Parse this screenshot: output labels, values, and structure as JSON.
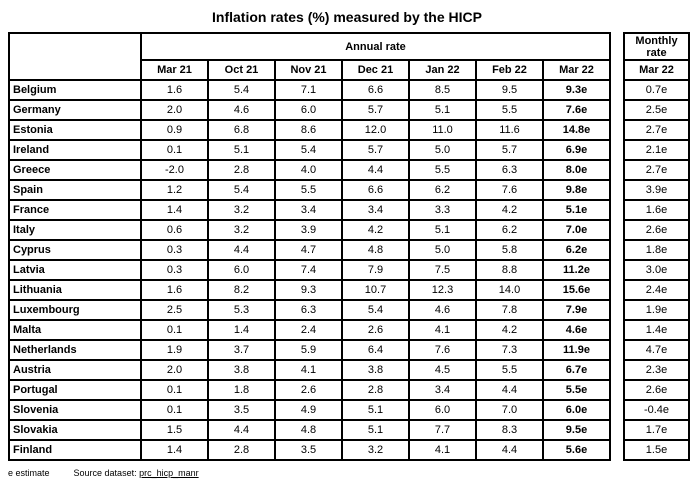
{
  "title": "Inflation rates (%) measured by the HICP",
  "annual_table": {
    "group_header": "Annual rate",
    "months": [
      "Mar 21",
      "Oct 21",
      "Nov 21",
      "Dec 21",
      "Jan 22",
      "Feb 22",
      "Mar 22"
    ],
    "rows": [
      {
        "country": "Belgium",
        "values": [
          "1.6",
          "5.4",
          "7.1",
          "6.6",
          "8.5",
          "9.5",
          "9.3e"
        ],
        "monthly": "0.7e"
      },
      {
        "country": "Germany",
        "values": [
          "2.0",
          "4.6",
          "6.0",
          "5.7",
          "5.1",
          "5.5",
          "7.6e"
        ],
        "monthly": "2.5e"
      },
      {
        "country": "Estonia",
        "values": [
          "0.9",
          "6.8",
          "8.6",
          "12.0",
          "11.0",
          "11.6",
          "14.8e"
        ],
        "monthly": "2.7e"
      },
      {
        "country": "Ireland",
        "values": [
          "0.1",
          "5.1",
          "5.4",
          "5.7",
          "5.0",
          "5.7",
          "6.9e"
        ],
        "monthly": "2.1e"
      },
      {
        "country": "Greece",
        "values": [
          "-2.0",
          "2.8",
          "4.0",
          "4.4",
          "5.5",
          "6.3",
          "8.0e"
        ],
        "monthly": "2.7e"
      },
      {
        "country": "Spain",
        "values": [
          "1.2",
          "5.4",
          "5.5",
          "6.6",
          "6.2",
          "7.6",
          "9.8e"
        ],
        "monthly": "3.9e"
      },
      {
        "country": "France",
        "values": [
          "1.4",
          "3.2",
          "3.4",
          "3.4",
          "3.3",
          "4.2",
          "5.1e"
        ],
        "monthly": "1.6e"
      },
      {
        "country": "Italy",
        "values": [
          "0.6",
          "3.2",
          "3.9",
          "4.2",
          "5.1",
          "6.2",
          "7.0e"
        ],
        "monthly": "2.6e"
      },
      {
        "country": "Cyprus",
        "values": [
          "0.3",
          "4.4",
          "4.7",
          "4.8",
          "5.0",
          "5.8",
          "6.2e"
        ],
        "monthly": "1.8e"
      },
      {
        "country": "Latvia",
        "values": [
          "0.3",
          "6.0",
          "7.4",
          "7.9",
          "7.5",
          "8.8",
          "11.2e"
        ],
        "monthly": "3.0e"
      },
      {
        "country": "Lithuania",
        "values": [
          "1.6",
          "8.2",
          "9.3",
          "10.7",
          "12.3",
          "14.0",
          "15.6e"
        ],
        "monthly": "2.4e"
      },
      {
        "country": "Luxembourg",
        "values": [
          "2.5",
          "5.3",
          "6.3",
          "5.4",
          "4.6",
          "7.8",
          "7.9e"
        ],
        "monthly": "1.9e"
      },
      {
        "country": "Malta",
        "values": [
          "0.1",
          "1.4",
          "2.4",
          "2.6",
          "4.1",
          "4.2",
          "4.6e"
        ],
        "monthly": "1.4e"
      },
      {
        "country": "Netherlands",
        "values": [
          "1.9",
          "3.7",
          "5.9",
          "6.4",
          "7.6",
          "7.3",
          "11.9e"
        ],
        "monthly": "4.7e"
      },
      {
        "country": "Austria",
        "values": [
          "2.0",
          "3.8",
          "4.1",
          "3.8",
          "4.5",
          "5.5",
          "6.7e"
        ],
        "monthly": "2.3e"
      },
      {
        "country": "Portugal",
        "values": [
          "0.1",
          "1.8",
          "2.6",
          "2.8",
          "3.4",
          "4.4",
          "5.5e"
        ],
        "monthly": "2.6e"
      },
      {
        "country": "Slovenia",
        "values": [
          "0.1",
          "3.5",
          "4.9",
          "5.1",
          "6.0",
          "7.0",
          "6.0e"
        ],
        "monthly": "-0.4e"
      },
      {
        "country": "Slovakia",
        "values": [
          "1.5",
          "4.4",
          "4.8",
          "5.1",
          "7.7",
          "8.3",
          "9.5e"
        ],
        "monthly": "1.7e"
      },
      {
        "country": "Finland",
        "values": [
          "1.4",
          "2.8",
          "3.5",
          "3.2",
          "4.1",
          "4.4",
          "5.6e"
        ],
        "monthly": "1.5e"
      }
    ]
  },
  "monthly_table": {
    "group_header": "Monthly rate",
    "month": "Mar 22"
  },
  "footer": {
    "estimate_note": "e estimate",
    "source_label": "Source dataset:",
    "source_link": "prc_hicp_manr"
  }
}
